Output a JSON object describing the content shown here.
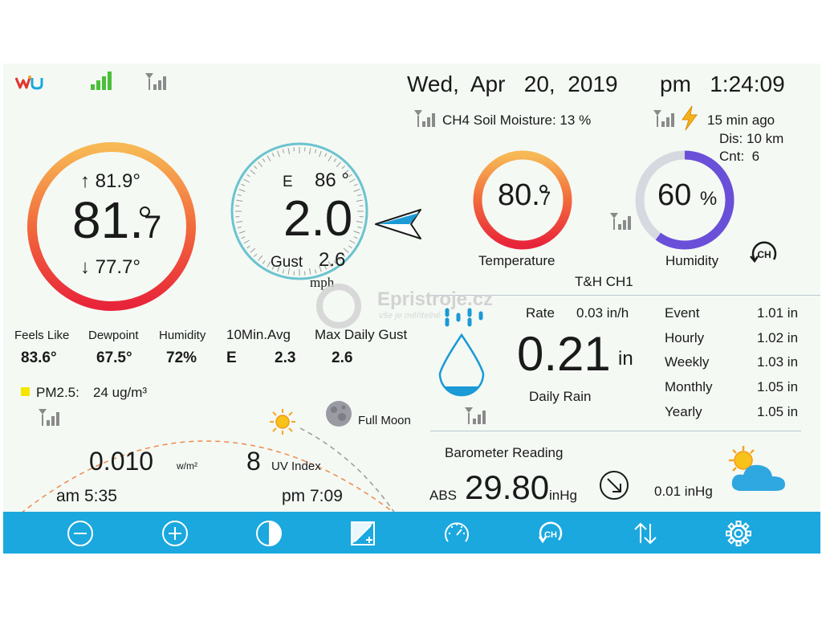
{
  "header": {
    "date": "Wed,  Apr   20,  2019",
    "time": "pm   1:24:09",
    "logo": "wu"
  },
  "soil": {
    "label": "CH4 Soil Moisture: 13 %"
  },
  "lightning": {
    "ago": "15 min ago",
    "distance": "Dis: 10 km",
    "count": "Cnt:  6"
  },
  "outdoor": {
    "high": "↑ 81.9°",
    "temp_main": "81.",
    "temp_decimal": "7",
    "low": "↓ 77.7°"
  },
  "wind": {
    "direction": "E",
    "degrees": "86 °",
    "speed": "2.0",
    "gust_label": "Gust",
    "gust_value": "2.6",
    "unit": "mph"
  },
  "channel": {
    "temperature_main": "80.",
    "temperature_decimal": "7",
    "temperature_label": "Temperature",
    "humidity_value": "60",
    "humidity_unit": "%",
    "humidity_label": "Humidity",
    "name": "T&H CH1",
    "humidity_fraction": 0.6
  },
  "stats": {
    "headers": [
      "Feels Like",
      "Dewpoint",
      "Humidity",
      "10Min.Avg",
      "Max Daily Gust"
    ],
    "feels_like": "83.6°",
    "dewpoint": "67.5°",
    "humidity": "72%",
    "avg_dir": "E",
    "avg_speed": "2.3",
    "max_gust": "2.6"
  },
  "pm25": {
    "label": "PM2.5:",
    "value": "24 ug/m³",
    "color": "#f5e600"
  },
  "moon": {
    "label": "Full Moon"
  },
  "solar": {
    "value": "0.010",
    "unit": "w/m²",
    "uv_value": "8",
    "uv_label": "UV Index",
    "sunrise": "am 5:35",
    "sunset": "pm 7:09"
  },
  "rain": {
    "rate_label": "Rate",
    "rate_value": "0.03 in/h",
    "daily_value": "0.21",
    "daily_unit": "in",
    "daily_label": "Daily Rain",
    "rows": [
      {
        "label": "Event",
        "value": "1.01 in"
      },
      {
        "label": "Hourly",
        "value": "1.02 in"
      },
      {
        "label": "Weekly",
        "value": "1.03 in"
      },
      {
        "label": "Monthly",
        "value": "1.05 in"
      },
      {
        "label": "Yearly",
        "value": "1.05 in"
      }
    ]
  },
  "barometer": {
    "title": "Barometer Reading",
    "abs_label": "ABS",
    "value": "29.80",
    "unit": "inHg",
    "change": "0.01 inHg"
  },
  "watermark": {
    "brand": "Epristroje.cz",
    "tagline": "vše je měřitelné"
  },
  "colors": {
    "toolbar": "#1aa8df",
    "accent_teal": "#6cc3cf",
    "rain_blue": "#1b9ad6",
    "humidity_purple": "#6a4fd8"
  }
}
